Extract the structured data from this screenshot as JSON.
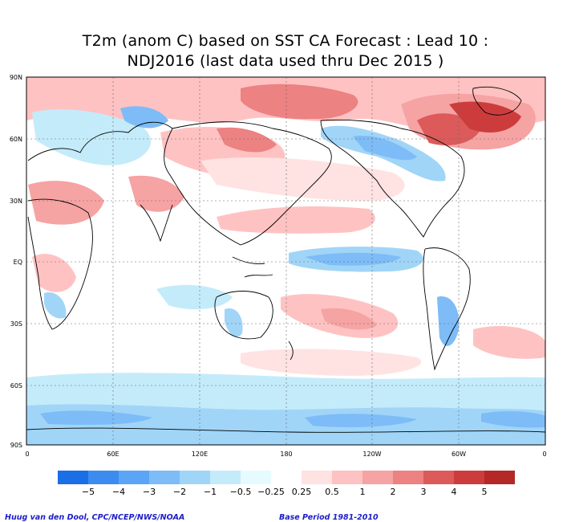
{
  "title_line1": "T2m (anom C) based on SST CA Forecast : Lead 10 :",
  "title_line2": "NDJ2016 (last data used thru Dec 2015 )",
  "lat_ticks": [
    "90N",
    "60N",
    "30N",
    "EQ",
    "30S",
    "60S",
    "90S"
  ],
  "lon_ticks": [
    "0",
    "60E",
    "120E",
    "180",
    "120W",
    "60W",
    "0"
  ],
  "colorbar": {
    "labels": [
      "−5",
      "−4",
      "−3",
      "−2",
      "−1",
      "−0.5",
      "−0.25",
      "0.25",
      "0.5",
      "1",
      "2",
      "3",
      "4",
      "5"
    ],
    "colors": [
      "#1a6ee6",
      "#3c8cf0",
      "#5aa5f5",
      "#7dbcf7",
      "#a0d5f8",
      "#c4ebfa",
      "#e6fbff",
      "#ffffff",
      "#ffe2e2",
      "#ffc2c2",
      "#f6a3a3",
      "#ec8282",
      "#dc5a5a",
      "#cd3c3c",
      "#b42828"
    ]
  },
  "credit_left": "Huug van den Dool, CPC/NCEP/NWS/NOAA",
  "credit_right": "Base Period 1981-2010"
}
